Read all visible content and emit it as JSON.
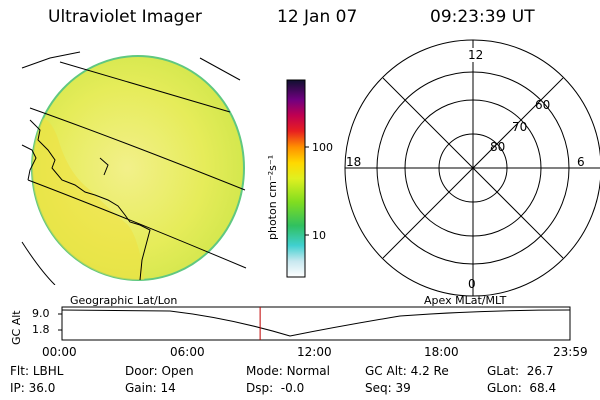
{
  "header": {
    "title": "Ultraviolet Imager",
    "date": "12 Jan 07",
    "time": "09:23:39 UT"
  },
  "colorbar": {
    "unit": "photon cm⁻²s⁻¹",
    "ticks": [
      "100",
      "10"
    ]
  },
  "polar_plot": {
    "mlt_labels": {
      "top": "12",
      "left": "18",
      "right": "6",
      "bottom": "0"
    },
    "lat_labels": [
      "60",
      "70",
      "80"
    ]
  },
  "timeline": {
    "left_label": "Geographic Lat/Lon",
    "right_label": "Apex MLat/MLT",
    "y_axis_label": "GC Alt",
    "y_ticks": [
      "9.0",
      "1.8"
    ],
    "x_ticks": [
      "00:00",
      "06:00",
      "12:00",
      "18:00",
      "23:59"
    ],
    "current_time_fraction": 0.39
  },
  "info": {
    "row1": [
      {
        "label": "Flt:",
        "value": "LBHL"
      },
      {
        "label": "Door:",
        "value": "Open"
      },
      {
        "label": "Mode:",
        "value": "Normal"
      },
      {
        "label": "GC Alt:",
        "value": "4.2 Re"
      },
      {
        "label": "GLat:",
        "value": "26.7"
      }
    ],
    "row2": [
      {
        "label": "IP:",
        "value": "36.0"
      },
      {
        "label": "Gain:",
        "value": "14"
      },
      {
        "label": "Dsp:",
        "value": "-0.0"
      },
      {
        "label": "Seq:",
        "value": "39"
      },
      {
        "label": "GLon:",
        "value": "68.4"
      }
    ]
  },
  "colors": {
    "image_fill": "#e8ee60",
    "image_edge": "#60c880"
  }
}
